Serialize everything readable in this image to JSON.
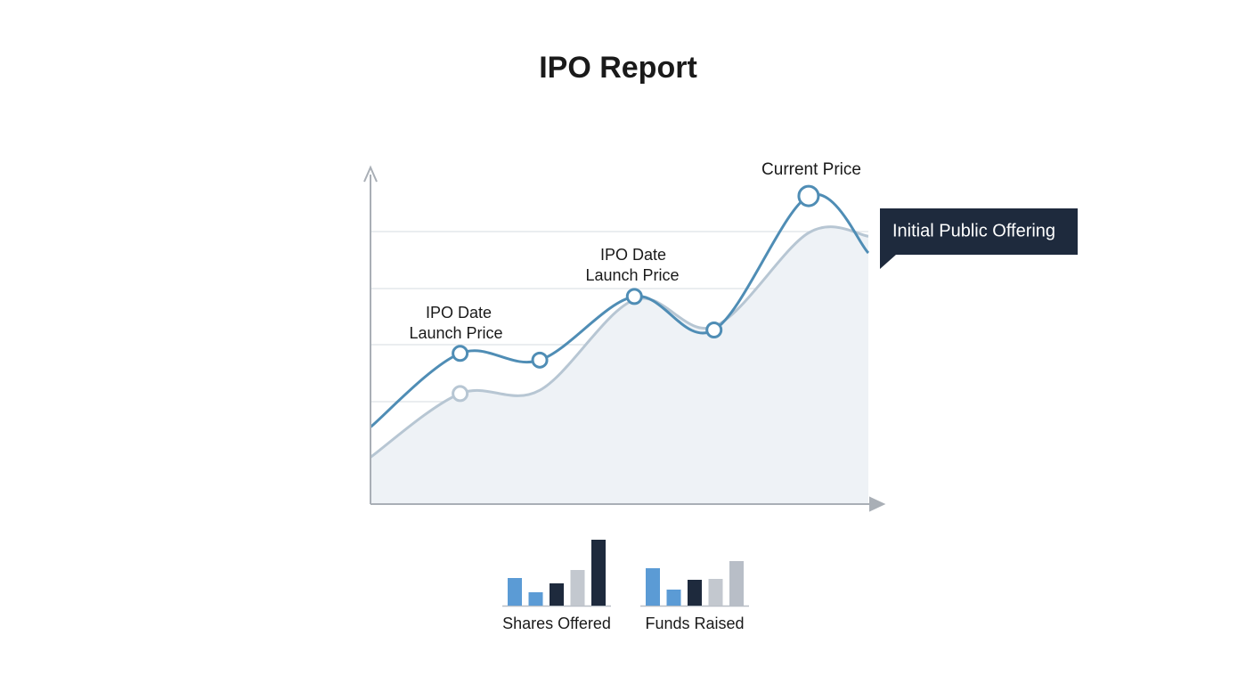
{
  "chart_data": [
    {
      "type": "line",
      "title": "IPO Report",
      "x": [
        0,
        18,
        34,
        53,
        69,
        88,
        100
      ],
      "xlim": [
        0,
        100
      ],
      "ylim": [
        0,
        100
      ],
      "grid": true,
      "series": [
        {
          "color": "#b7c6d3",
          "values": [
            14,
            33,
            34,
            61,
            53,
            81,
            80
          ]
        },
        {
          "color": "#4f8db5",
          "values": [
            23,
            45,
            43,
            62,
            52,
            92,
            75
          ]
        }
      ],
      "annotations": [
        "IPO Date",
        "Launch Price",
        "IPO Date",
        "Launch Price",
        "Current Price"
      ],
      "callout": "Initial Public Offering"
    },
    {
      "type": "bar",
      "title": "Shares Offered",
      "values": [
        31,
        15,
        25,
        40,
        74
      ],
      "ylim": [
        0,
        80
      ],
      "colors": [
        "#5b9bd5",
        "#5b9bd5",
        "#1e2a3d",
        "#c3c8cf",
        "#1e2a3d"
      ]
    },
    {
      "type": "bar",
      "title": "Funds Raised",
      "values": [
        42,
        18,
        29,
        30,
        50
      ],
      "ylim": [
        0,
        80
      ],
      "colors": [
        "#5b9bd5",
        "#5b9bd5",
        "#1e2a3d",
        "#c3c8cf",
        "#b8bec7"
      ]
    }
  ]
}
